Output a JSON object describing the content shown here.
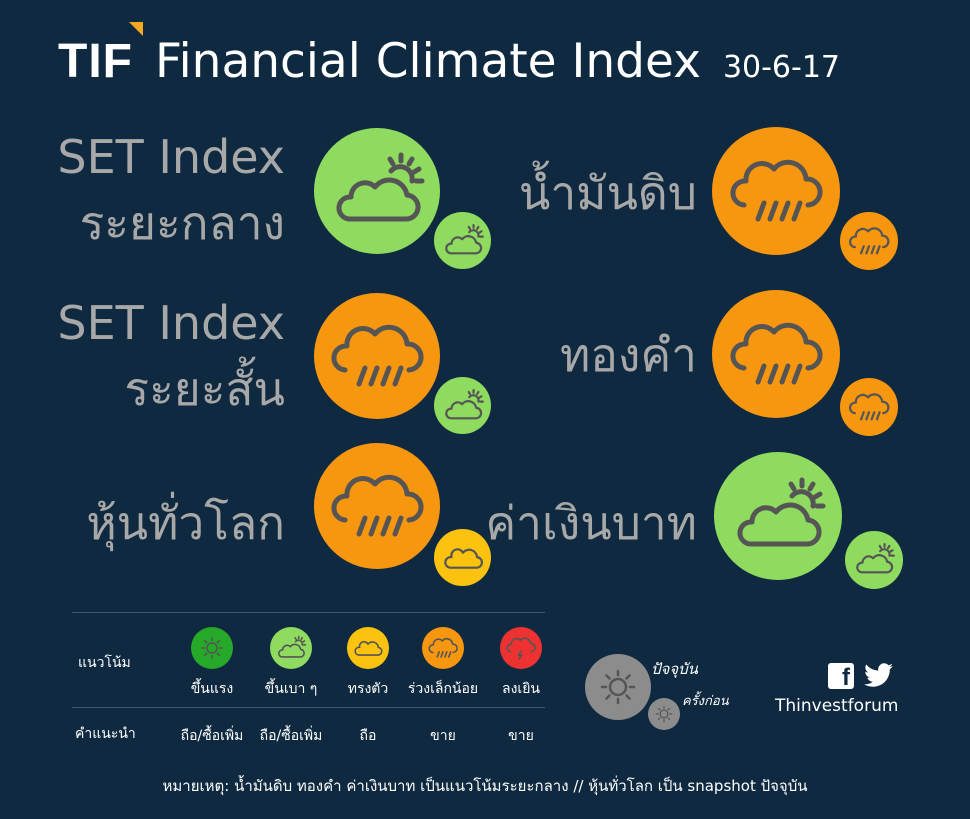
{
  "header": {
    "logo": "TIF",
    "title": "Financial Climate Index",
    "date": "30-6-17"
  },
  "indicators": [
    {
      "label_line1": "SET Index",
      "label_line2": "ระยะกลาง",
      "current": "ขึ้นเบา ๆ",
      "previous": "ขึ้นเบา ๆ"
    },
    {
      "label_line1": "SET Index",
      "label_line2": "ระยะสั้น",
      "current": "ร่วงเล็กน้อย",
      "previous": "ขึ้นเบา ๆ"
    },
    {
      "label_line1": "หุ้นทั่วโลก",
      "label_line2": "",
      "current": "ร่วงเล็กน้อย",
      "previous": "ทรงตัว"
    },
    {
      "label_line1": "น้ำมันดิบ",
      "label_line2": "",
      "current": "ร่วงเล็กน้อย",
      "previous": "ร่วงเล็กน้อย"
    },
    {
      "label_line1": "ทองคำ",
      "label_line2": "",
      "current": "ร่วงเล็กน้อย",
      "previous": "ร่วงเล็กน้อย"
    },
    {
      "label_line1": "ค่าเงินบาท",
      "label_line2": "",
      "current": "ขึ้นเบา ๆ",
      "previous": "ขึ้นเบา ๆ"
    }
  ],
  "legend": {
    "trend_label": "แนวโน้ม",
    "advice_label": "คำแนะนำ",
    "items": [
      {
        "trend": "ขึ้นแรง",
        "advice": "ถือ/ซื้อเพิ่ม",
        "color": "#26a829",
        "icon": "sun-icon"
      },
      {
        "trend": "ขึ้นเบา ๆ",
        "advice": "ถือ/ซื้อเพิ่ม",
        "color": "#8edb5f",
        "icon": "cloud-sun-icon"
      },
      {
        "trend": "ทรงตัว",
        "advice": "ถือ",
        "color": "#fbc310",
        "icon": "cloud-icon"
      },
      {
        "trend": "ร่วงเล็กน้อย",
        "advice": "ขาย",
        "color": "#f7960f",
        "icon": "rain-cloud-icon"
      },
      {
        "trend": "ลงเยิน",
        "advice": "ขาย",
        "color": "#ee3232",
        "icon": "storm-cloud-icon"
      }
    ]
  },
  "key": {
    "current": "ปัจจุบัน",
    "previous": "ครั้งก่อน"
  },
  "social": {
    "handle": "Thinvestforum"
  },
  "footnote": "หมายเหตุ: น้ำมันดิบ ทองคำ ค่าเงินบาท เป็นแนวโน้มระยะกลาง // หุ้นทั่วโลก เป็น snapshot ปัจจุบัน",
  "colors": {
    "background": "#0f2a40",
    "strong_up": "#26a829",
    "mild_up": "#8edb5f",
    "flat": "#fbc310",
    "mild_down": "#f7960f",
    "strong_down": "#ee3232",
    "accent": "#f7a823"
  }
}
